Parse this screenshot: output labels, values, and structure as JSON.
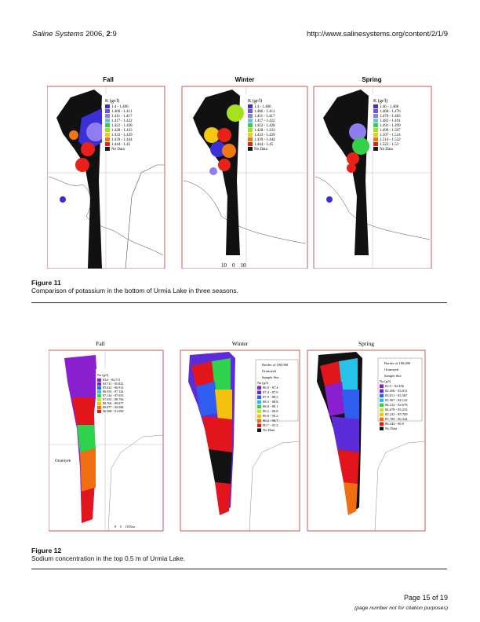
{
  "header": {
    "journal": "Saline Systems",
    "year": "2006,",
    "volume": "2",
    "issue": ":9",
    "url": "http://www.salinesystems.org/content/2/1/9"
  },
  "figure11": {
    "seasons": [
      "Fall",
      "Winter",
      "Spring"
    ],
    "label": "Figure 11",
    "caption": "Comparison of potassium in the bottom of Urmia Lake in three seasons.",
    "legend_fall_title": "K  (gr/l)",
    "legend_fall": [
      "1.4 - 1.406",
      "1.406 - 1.411",
      "1.411 - 1.417",
      "1.417 - 1.422",
      "1.422 - 1.428",
      "1.428 - 1.433",
      "1.433 - 1.439",
      "1.439 - 1.444",
      "1.444 - 1.45",
      "No Data"
    ],
    "legend_winter_title": "K  (gr/l)",
    "legend_winter": [
      "1.4 - 1.406",
      "1.406 - 1.411",
      "1.411 - 1.417",
      "1.417 - 1.422",
      "1.422 - 1.428",
      "1.428 - 1.433",
      "1.433 - 1.439",
      "1.439 - 1.444",
      "1.444 - 1.45",
      "No Data"
    ],
    "legend_spring_title": "K  (gr/l)",
    "legend_spring": [
      "1.46 - 1.468",
      "1.468 - 1.476",
      "1.476 - 1.483",
      "1.483 - 1.491",
      "1.491 - 1.499",
      "1.499 - 1.507",
      "1.507 - 1.514",
      "1.514 - 1.522",
      "1.522 - 1.53",
      "No Data"
    ],
    "scale_text": "10    0    10",
    "colors": [
      "#3b2fd6",
      "#6a52e8",
      "#8f7cf0",
      "#5fc8d8",
      "#35d04a",
      "#a6e21c",
      "#f2c812",
      "#f07814",
      "#e8211b",
      "#1a1a1a"
    ]
  },
  "figure12": {
    "seasons": [
      "Fall",
      "Winter",
      "Spring"
    ],
    "label": "Figure 12",
    "caption": "Sodium concentration in the top 0.5 m of Urmia Lake.",
    "legend_fall_title": "Na (g/l)",
    "legend_fall": [
      "83.6 - 84.711",
      "84.711 - 85.822",
      "85.822 - 86.933",
      "86.933 - 87.144",
      "87.144 - 87.655",
      "87.655 - 88.766",
      "88.766 - 89.877",
      "89.877 - 90.988",
      "90.988 - 91.099"
    ],
    "legend_winter_border": "Border of 100,000",
    "legend_winter_town": "Orumiyeh",
    "legend_winter_site": "Sample Site",
    "legend_winter_title": "Na (g/l)",
    "legend_winter": [
      "86.9 - 87.4",
      "87.4 - 87.9",
      "87.9 - 88.3",
      "88.3 - 88.8",
      "88.8 - 89.1",
      "89.2 - 89.8",
      "89.8 - 90.2",
      "90.2 - 90.7",
      "90.7 - 91.2",
      "No Data"
    ],
    "legend_spring_border": "Border of 100,000",
    "legend_spring_town": "Orumiyeh",
    "legend_spring_site": "Sample Site",
    "legend_spring_title": "Na (g/l)",
    "legend_spring": [
      "81.9 - 82.456",
      "82.456 - 83.011",
      "83.011 - 83.567",
      "83.567 - 84.122",
      "84.122 - 84.678",
      "84.678 - 85.233",
      "85.233 - 85.789",
      "85.789 - 86.344",
      "86.344 - 86.9",
      "No Data"
    ],
    "town_label": "Orumiyeh",
    "scale_text": "0    5    10 Km",
    "colors": [
      "#8a1fd0",
      "#5b2cd8",
      "#2e5df0",
      "#27c2e8",
      "#2fd24c",
      "#c6e41a",
      "#f4c20e",
      "#f06e12",
      "#e2141c",
      "#121212"
    ]
  },
  "footer": {
    "page": "Page 15 of 19",
    "note": "(page number not for citation purposes)"
  }
}
